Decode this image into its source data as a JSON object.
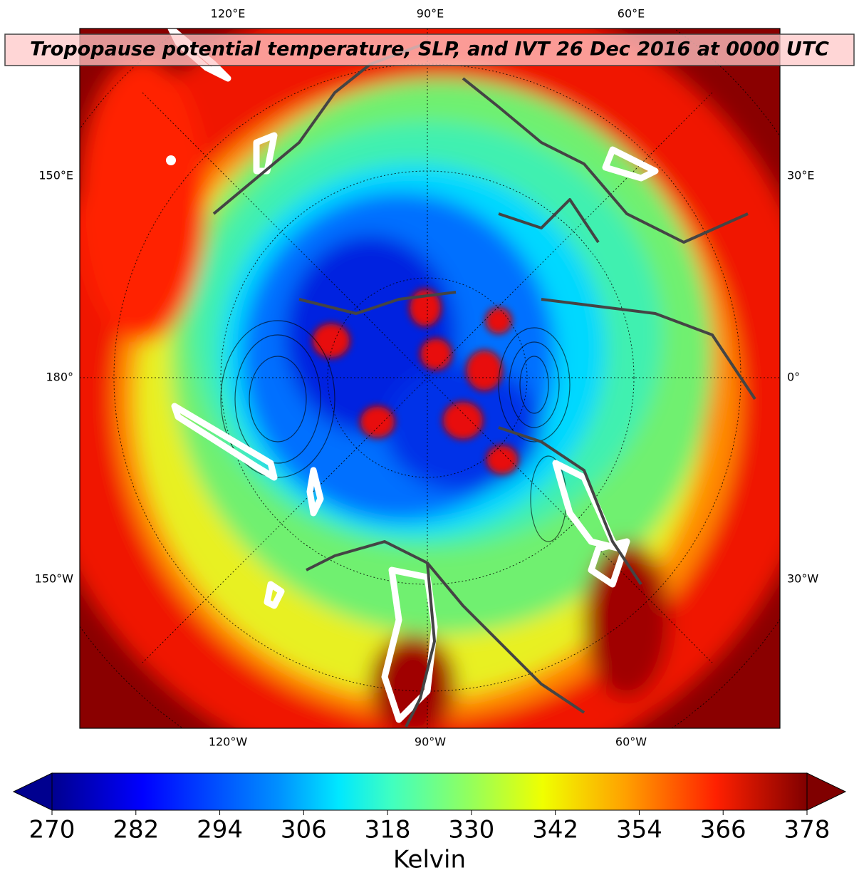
{
  "map": {
    "title": "Tropopause potential temperature, SLP, and IVT 26 Dec 2016 at 0000 UTC",
    "top_labels": [
      "120°E",
      "90°E",
      "60°E"
    ],
    "bottom_labels": [
      "120°W",
      "90°W",
      "60°W"
    ],
    "left_labels": [
      "150°E",
      "180°",
      "150°W"
    ],
    "right_labels": [
      "30°E",
      "0°",
      "30°W"
    ]
  },
  "colorbar": {
    "label": "Kelvin",
    "lim": [
      270,
      378
    ],
    "ticks": [
      270,
      282,
      294,
      306,
      318,
      330,
      342,
      354,
      366,
      378
    ]
  }
}
